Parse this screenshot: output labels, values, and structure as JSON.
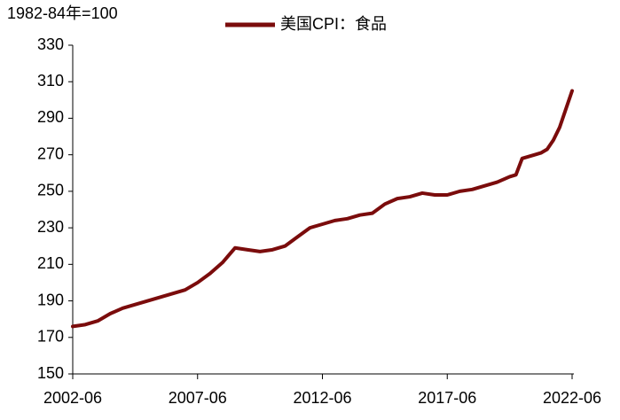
{
  "chart_data": {
    "type": "line",
    "y_label": "1982-84年=100",
    "x": [
      "2002-06",
      "2002-12",
      "2003-06",
      "2003-12",
      "2004-06",
      "2004-12",
      "2005-06",
      "2005-12",
      "2006-06",
      "2006-12",
      "2007-06",
      "2007-12",
      "2008-06",
      "2008-12",
      "2009-06",
      "2009-12",
      "2010-06",
      "2010-12",
      "2011-06",
      "2011-12",
      "2012-06",
      "2012-12",
      "2013-06",
      "2013-12",
      "2014-06",
      "2014-12",
      "2015-06",
      "2015-12",
      "2016-06",
      "2016-12",
      "2017-06",
      "2017-12",
      "2018-06",
      "2018-12",
      "2019-06",
      "2019-12",
      "2020-03",
      "2020-06",
      "2020-12",
      "2021-03",
      "2021-06",
      "2021-09",
      "2021-12",
      "2022-03",
      "2022-06"
    ],
    "series": [
      {
        "name": "美国CPI：食品",
        "color": "#7b0c0c",
        "values": [
          176,
          177,
          179,
          183,
          186,
          188,
          190,
          192,
          194,
          196,
          200,
          205,
          211,
          219,
          218,
          217,
          218,
          220,
          225,
          230,
          232,
          234,
          235,
          237,
          238,
          243,
          246,
          247,
          249,
          248,
          248,
          250,
          251,
          253,
          255,
          258,
          259,
          268,
          270,
          271,
          273,
          278,
          285,
          295,
          305
        ]
      }
    ],
    "xlim": [
      "2002-06",
      "2022-06"
    ],
    "xticks": [
      "2002-06",
      "2007-06",
      "2012-06",
      "2017-06",
      "2022-06"
    ],
    "ylim": [
      150,
      330
    ],
    "yticks": [
      150,
      170,
      190,
      210,
      230,
      250,
      270,
      290,
      310,
      330
    ],
    "legend": "top"
  }
}
